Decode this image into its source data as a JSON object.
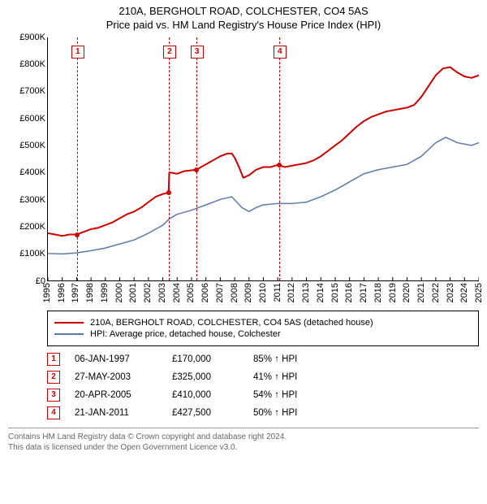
{
  "title": {
    "line1": "210A, BERGHOLT ROAD, COLCHESTER, CO4 5AS",
    "line2": "Price paid vs. HM Land Registry's House Price Index (HPI)"
  },
  "chart": {
    "type": "line",
    "background_color": "#ffffff",
    "grid_color": "#e0e0e0",
    "x": {
      "min": 1995,
      "max": 2025,
      "ticks": [
        1995,
        1996,
        1997,
        1998,
        1999,
        2000,
        2001,
        2002,
        2003,
        2004,
        2005,
        2006,
        2007,
        2008,
        2009,
        2010,
        2011,
        2012,
        2013,
        2014,
        2015,
        2016,
        2017,
        2018,
        2019,
        2020,
        2021,
        2022,
        2023,
        2024,
        2025
      ]
    },
    "y": {
      "min": 0,
      "max": 900000,
      "tick_step": 100000,
      "tick_labels": [
        "£0",
        "£100K",
        "£200K",
        "£300K",
        "£400K",
        "£500K",
        "£600K",
        "£700K",
        "£800K",
        "£900K"
      ]
    },
    "series": [
      {
        "name": "210A, BERGHOLT ROAD, COLCHESTER, CO4 5AS (detached house)",
        "color": "#cc0000",
        "width": 2,
        "points": [
          [
            1995.0,
            175000
          ],
          [
            1995.5,
            170000
          ],
          [
            1996.0,
            165000
          ],
          [
            1996.5,
            170000
          ],
          [
            1997.0,
            170000
          ],
          [
            1997.5,
            180000
          ],
          [
            1998.0,
            190000
          ],
          [
            1998.5,
            195000
          ],
          [
            1999.0,
            205000
          ],
          [
            1999.5,
            215000
          ],
          [
            2000.0,
            230000
          ],
          [
            2000.5,
            245000
          ],
          [
            2001.0,
            255000
          ],
          [
            2001.5,
            270000
          ],
          [
            2002.0,
            290000
          ],
          [
            2002.5,
            310000
          ],
          [
            2003.0,
            320000
          ],
          [
            2003.4,
            325000
          ],
          [
            2003.45,
            400000
          ],
          [
            2003.5,
            400000
          ],
          [
            2004.0,
            395000
          ],
          [
            2004.5,
            405000
          ],
          [
            2005.0,
            408000
          ],
          [
            2005.3,
            410000
          ],
          [
            2005.5,
            415000
          ],
          [
            2006.0,
            430000
          ],
          [
            2006.5,
            445000
          ],
          [
            2007.0,
            460000
          ],
          [
            2007.5,
            470000
          ],
          [
            2007.8,
            470000
          ],
          [
            2008.0,
            455000
          ],
          [
            2008.3,
            420000
          ],
          [
            2008.6,
            380000
          ],
          [
            2009.0,
            390000
          ],
          [
            2009.5,
            410000
          ],
          [
            2010.0,
            420000
          ],
          [
            2010.5,
            420000
          ],
          [
            2011.0,
            427500
          ],
          [
            2011.5,
            420000
          ],
          [
            2012.0,
            425000
          ],
          [
            2012.5,
            430000
          ],
          [
            2013.0,
            435000
          ],
          [
            2013.5,
            445000
          ],
          [
            2014.0,
            460000
          ],
          [
            2014.5,
            480000
          ],
          [
            2015.0,
            500000
          ],
          [
            2015.5,
            520000
          ],
          [
            2016.0,
            545000
          ],
          [
            2016.5,
            570000
          ],
          [
            2017.0,
            590000
          ],
          [
            2017.5,
            605000
          ],
          [
            2018.0,
            615000
          ],
          [
            2018.5,
            625000
          ],
          [
            2019.0,
            630000
          ],
          [
            2019.5,
            635000
          ],
          [
            2020.0,
            640000
          ],
          [
            2020.5,
            650000
          ],
          [
            2021.0,
            680000
          ],
          [
            2021.5,
            720000
          ],
          [
            2022.0,
            760000
          ],
          [
            2022.5,
            785000
          ],
          [
            2023.0,
            790000
          ],
          [
            2023.5,
            770000
          ],
          [
            2024.0,
            755000
          ],
          [
            2024.5,
            750000
          ],
          [
            2025.0,
            760000
          ]
        ]
      },
      {
        "name": "HPI: Average price, detached house, Colchester",
        "color": "#5b7ba6",
        "width": 1.5,
        "points": [
          [
            1995.0,
            100000
          ],
          [
            1996.0,
            98000
          ],
          [
            1997.0,
            102000
          ],
          [
            1998.0,
            110000
          ],
          [
            1999.0,
            120000
          ],
          [
            2000.0,
            135000
          ],
          [
            2001.0,
            150000
          ],
          [
            2002.0,
            175000
          ],
          [
            2003.0,
            205000
          ],
          [
            2003.5,
            230000
          ],
          [
            2004.0,
            245000
          ],
          [
            2005.0,
            260000
          ],
          [
            2006.0,
            280000
          ],
          [
            2007.0,
            300000
          ],
          [
            2007.8,
            310000
          ],
          [
            2008.5,
            270000
          ],
          [
            2009.0,
            255000
          ],
          [
            2009.5,
            270000
          ],
          [
            2010.0,
            280000
          ],
          [
            2011.0,
            285000
          ],
          [
            2012.0,
            285000
          ],
          [
            2013.0,
            290000
          ],
          [
            2014.0,
            310000
          ],
          [
            2015.0,
            335000
          ],
          [
            2016.0,
            365000
          ],
          [
            2017.0,
            395000
          ],
          [
            2018.0,
            410000
          ],
          [
            2019.0,
            420000
          ],
          [
            2020.0,
            430000
          ],
          [
            2021.0,
            460000
          ],
          [
            2022.0,
            510000
          ],
          [
            2022.7,
            530000
          ],
          [
            2023.5,
            510000
          ],
          [
            2024.0,
            505000
          ],
          [
            2024.5,
            500000
          ],
          [
            2025.0,
            510000
          ]
        ]
      }
    ],
    "sale_markers": [
      {
        "n": "1",
        "x": 1997.02,
        "y": 170000
      },
      {
        "n": "2",
        "x": 2003.4,
        "y": 325000
      },
      {
        "n": "3",
        "x": 2005.3,
        "y": 410000
      },
      {
        "n": "4",
        "x": 2011.06,
        "y": 427500
      }
    ]
  },
  "legend": [
    {
      "color": "#cc0000",
      "label": "210A, BERGHOLT ROAD, COLCHESTER, CO4 5AS (detached house)"
    },
    {
      "color": "#5b7ba6",
      "label": "HPI: Average price, detached house, Colchester"
    }
  ],
  "sales": [
    {
      "n": "1",
      "date": "06-JAN-1997",
      "price": "£170,000",
      "pct": "85% ↑ HPI"
    },
    {
      "n": "2",
      "date": "27-MAY-2003",
      "price": "£325,000",
      "pct": "41% ↑ HPI"
    },
    {
      "n": "3",
      "date": "20-APR-2005",
      "price": "£410,000",
      "pct": "54% ↑ HPI"
    },
    {
      "n": "4",
      "date": "21-JAN-2011",
      "price": "£427,500",
      "pct": "50% ↑ HPI"
    }
  ],
  "footer": {
    "line1": "Contains HM Land Registry data © Crown copyright and database right 2024.",
    "line2": "This data is licensed under the Open Government Licence v3.0."
  }
}
